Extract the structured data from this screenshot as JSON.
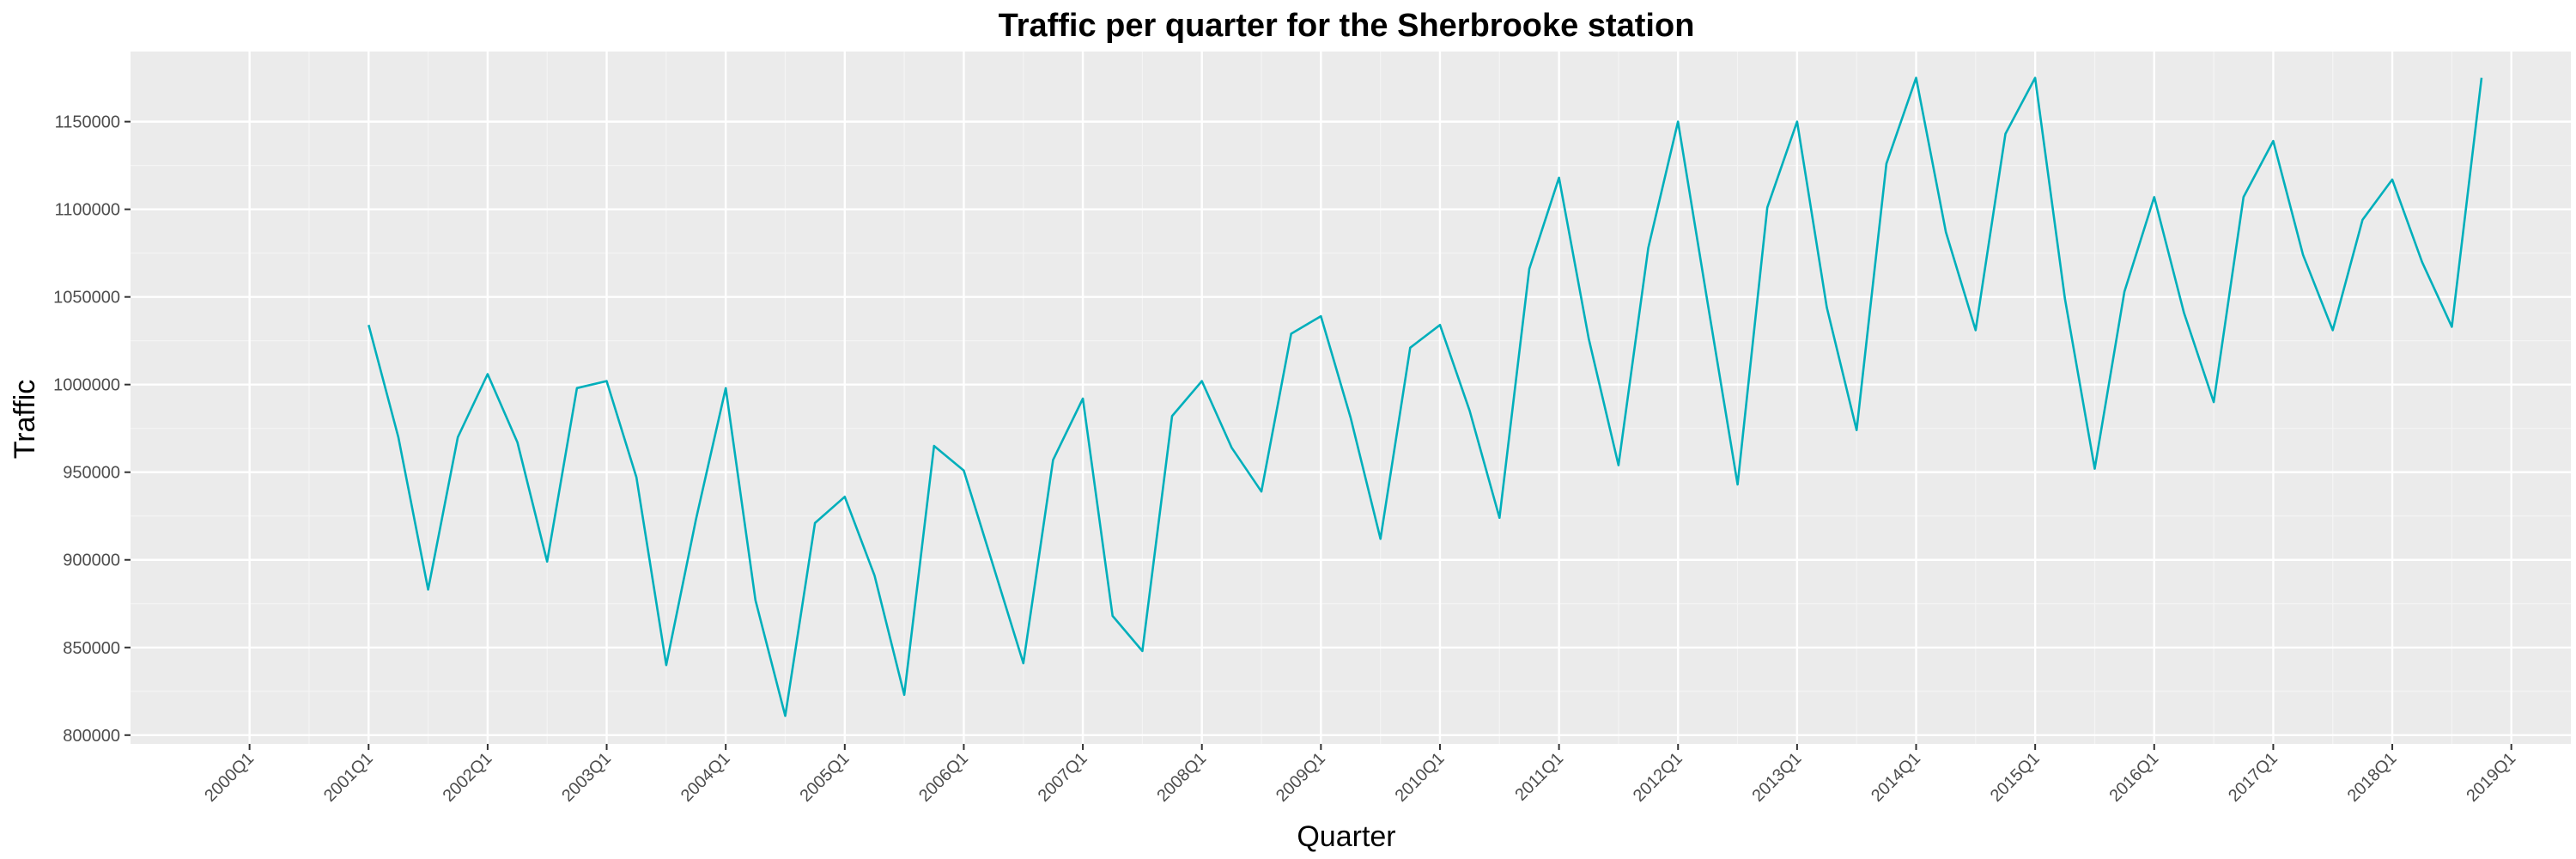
{
  "chart_data": {
    "type": "line",
    "title": "Traffic per quarter for the Sherbrooke station",
    "xlabel": "Quarter",
    "ylabel": "Traffic",
    "x_ticks": [
      "2000Q1",
      "2001Q1",
      "2002Q1",
      "2003Q1",
      "2004Q1",
      "2005Q1",
      "2006Q1",
      "2007Q1",
      "2008Q1",
      "2009Q1",
      "2010Q1",
      "2011Q1",
      "2012Q1",
      "2013Q1",
      "2014Q1",
      "2015Q1",
      "2016Q1",
      "2017Q1",
      "2018Q1",
      "2019Q1"
    ],
    "y_ticks": [
      800000,
      850000,
      900000,
      950000,
      1000000,
      1050000,
      1100000,
      1150000
    ],
    "y_tick_labels": [
      "800000",
      "850000",
      "900000",
      "950000",
      "1000000",
      "1050000",
      "1100000",
      "1150000"
    ],
    "xlim": [
      "1999Q1",
      "2019Q3"
    ],
    "ylim": [
      795000,
      1190000
    ],
    "grid": true,
    "colors": {
      "line": "#00AFBB",
      "panel": "#EBEBEB",
      "grid_major": "#FFFFFF",
      "grid_minor": "#F4F4F4"
    },
    "series": [
      {
        "x": [
          "2001Q1",
          "2001Q2",
          "2001Q3",
          "2001Q4",
          "2002Q1",
          "2002Q2",
          "2002Q3",
          "2002Q4",
          "2003Q1",
          "2003Q2",
          "2003Q3",
          "2003Q4",
          "2004Q1",
          "2004Q2",
          "2004Q3",
          "2004Q4",
          "2005Q1",
          "2005Q2",
          "2005Q3",
          "2005Q4",
          "2006Q1",
          "2006Q2",
          "2006Q3",
          "2006Q4",
          "2007Q1",
          "2007Q2",
          "2007Q3",
          "2007Q4",
          "2008Q1",
          "2008Q2",
          "2008Q3",
          "2008Q4",
          "2009Q1",
          "2009Q2",
          "2009Q3",
          "2009Q4",
          "2010Q1",
          "2010Q2",
          "2010Q3",
          "2010Q4",
          "2011Q1",
          "2011Q2",
          "2011Q3",
          "2011Q4",
          "2012Q1",
          "2012Q2",
          "2012Q3",
          "2012Q4",
          "2013Q1",
          "2013Q2",
          "2013Q3",
          "2013Q4",
          "2014Q1",
          "2014Q2",
          "2014Q3",
          "2014Q4",
          "2015Q1",
          "2015Q2",
          "2015Q3",
          "2015Q4",
          "2016Q1",
          "2016Q2",
          "2016Q3",
          "2016Q4",
          "2017Q1",
          "2017Q2",
          "2017Q3",
          "2017Q4",
          "2018Q1",
          "2018Q2",
          "2018Q3",
          "2018Q4"
        ],
        "values": [
          1034000,
          970000,
          883000,
          970000,
          1006000,
          967000,
          899000,
          998000,
          1002000,
          947000,
          840000,
          923000,
          998000,
          877000,
          811000,
          921000,
          936000,
          891000,
          823000,
          965000,
          951000,
          896000,
          841000,
          957000,
          992000,
          868000,
          848000,
          982000,
          1002000,
          964000,
          939000,
          1029000,
          1039000,
          981000,
          912000,
          1021000,
          1034000,
          985000,
          924000,
          1066000,
          1118000,
          1026000,
          954000,
          1078000,
          1150000,
          1046000,
          943000,
          1101000,
          1150000,
          1044000,
          974000,
          1126000,
          1175000,
          1087000,
          1031000,
          1143000,
          1175000,
          1049000,
          952000,
          1053000,
          1107000,
          1041000,
          990000,
          1107000,
          1139000,
          1074000,
          1031000,
          1094000,
          1117000,
          1070000,
          1033000,
          1175000
        ]
      }
    ]
  }
}
